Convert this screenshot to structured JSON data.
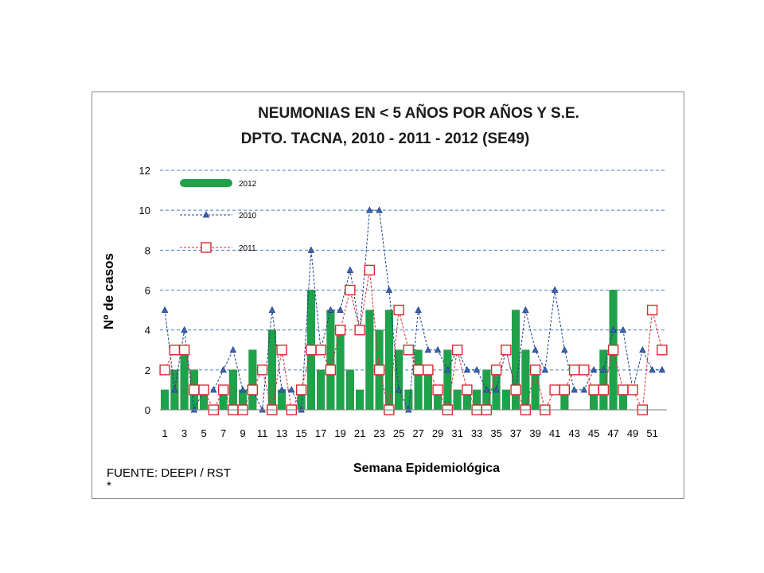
{
  "chart_data": {
    "type": "bar",
    "title_line1": "NEUMONIAS  EN  < 5  AÑOS  POR AÑOS Y S.E.",
    "title_line2": "DPTO. TACNA, 2010 - 2011 - 2012 (SE49)",
    "xlabel": "Semana Epidemiológica",
    "ylabel": "Nº de casos",
    "source": "FUENTE: DEEPI / RST",
    "footnote": "*",
    "ylim": [
      0,
      12
    ],
    "yticks": [
      0,
      2,
      4,
      6,
      8,
      10,
      12
    ],
    "grid": true,
    "legend_position": "top-left",
    "x": [
      1,
      2,
      3,
      4,
      5,
      6,
      7,
      8,
      9,
      10,
      11,
      12,
      13,
      14,
      15,
      16,
      17,
      18,
      19,
      20,
      21,
      22,
      23,
      24,
      25,
      26,
      27,
      28,
      29,
      30,
      31,
      32,
      33,
      34,
      35,
      36,
      37,
      38,
      39,
      40,
      41,
      42,
      43,
      44,
      45,
      46,
      47,
      48,
      49,
      50,
      51,
      52
    ],
    "xtick_labels": [
      "1",
      "3",
      "5",
      "7",
      "9",
      "11",
      "13",
      "15",
      "17",
      "19",
      "21",
      "23",
      "25",
      "27",
      "29",
      "31",
      "33",
      "35",
      "37",
      "39",
      "41",
      "43",
      "45",
      "47",
      "49",
      "51"
    ],
    "series": [
      {
        "name": "2012",
        "kind": "bar",
        "color": "#1fa34a",
        "values": [
          1,
          2,
          3,
          2,
          1,
          0,
          1,
          2,
          1,
          3,
          0,
          4,
          1,
          0,
          1,
          6,
          2,
          5,
          4,
          2,
          1,
          5,
          4,
          5,
          3,
          1,
          3,
          2,
          1,
          3,
          1,
          1,
          1,
          2,
          2,
          1,
          5,
          3,
          2,
          0,
          0,
          1,
          0,
          0,
          1,
          3,
          6,
          1,
          0,
          0,
          0,
          0
        ]
      },
      {
        "name": "2010",
        "kind": "line",
        "color": "#1f3f8a",
        "values": [
          5,
          1,
          4,
          0,
          1,
          1,
          2,
          3,
          1,
          1,
          0,
          5,
          1,
          1,
          0,
          8,
          3,
          5,
          5,
          7,
          4,
          10,
          10,
          6,
          1,
          0,
          5,
          3,
          3,
          2,
          3,
          2,
          2,
          1,
          1,
          3,
          1,
          5,
          3,
          2,
          6,
          3,
          1,
          1,
          2,
          2,
          4,
          4,
          1,
          3,
          2,
          2
        ]
      },
      {
        "name": "2011",
        "kind": "line",
        "color": "#d9282f",
        "values": [
          2,
          3,
          3,
          1,
          1,
          0,
          1,
          0,
          0,
          1,
          2,
          0,
          3,
          0,
          1,
          3,
          3,
          2,
          4,
          6,
          4,
          7,
          2,
          0,
          5,
          3,
          2,
          2,
          1,
          0,
          3,
          1,
          0,
          0,
          2,
          3,
          1,
          0,
          2,
          0,
          1,
          1,
          2,
          2,
          1,
          1,
          3,
          1,
          1,
          0,
          5,
          3
        ]
      }
    ]
  }
}
